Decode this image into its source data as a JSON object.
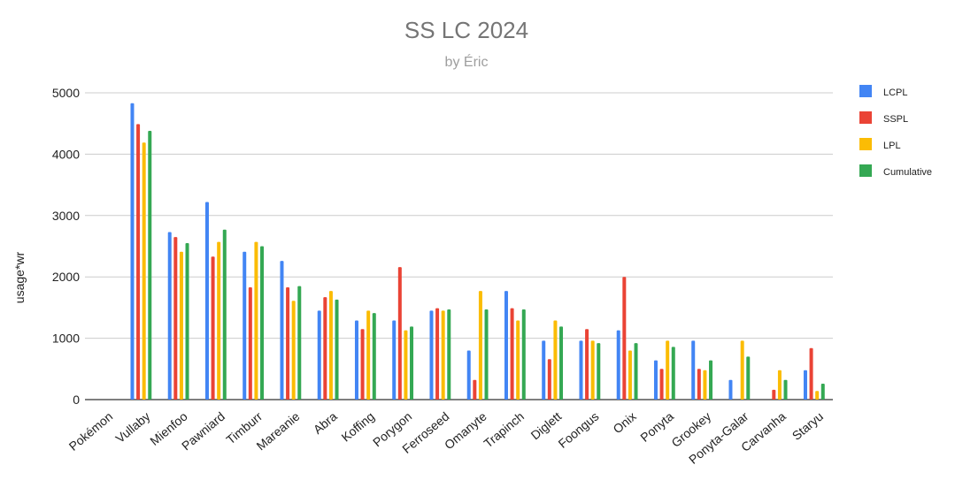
{
  "chart_data": {
    "type": "bar",
    "title": "SS LC 2024",
    "subtitle": "by Éric",
    "xlabel": "",
    "ylabel": "usage*wr",
    "ylim": [
      0,
      5000
    ],
    "yticks": [
      0,
      1000,
      2000,
      3000,
      4000,
      5000
    ],
    "grid": true,
    "legend_position": "right",
    "categories": [
      "Pokémon",
      "Vullaby",
      "Mienfoo",
      "Pawniard",
      "Timburr",
      "Mareanie",
      "Abra",
      "Koffing",
      "Porygon",
      "Ferroseed",
      "Omanyte",
      "Trapinch",
      "Diglett",
      "Foongus",
      "Onix",
      "Ponyta",
      "Grookey",
      "Ponyta-Galar",
      "Carvanha",
      "Staryu"
    ],
    "series": [
      {
        "name": "LCPL",
        "color": "#4285F4",
        "values": [
          null,
          4830,
          2730,
          3220,
          2410,
          2260,
          1450,
          1290,
          1290,
          1450,
          800,
          1770,
          960,
          960,
          1130,
          640,
          960,
          320,
          0,
          480
        ]
      },
      {
        "name": "SSPL",
        "color": "#EA4335",
        "values": [
          null,
          4490,
          2650,
          2330,
          1830,
          1830,
          1670,
          1150,
          2160,
          1490,
          320,
          1490,
          660,
          1150,
          2000,
          500,
          500,
          0,
          160,
          840
        ]
      },
      {
        "name": "LPL",
        "color": "#FBBC04",
        "values": [
          null,
          4190,
          2410,
          2570,
          2570,
          1610,
          1770,
          1450,
          1130,
          1450,
          1770,
          1290,
          1290,
          960,
          800,
          960,
          480,
          960,
          480,
          140
        ]
      },
      {
        "name": "Cumulative",
        "color": "#34A853",
        "values": [
          null,
          4380,
          2550,
          2770,
          2500,
          1850,
          1630,
          1410,
          1190,
          1470,
          1470,
          1470,
          1190,
          920,
          920,
          860,
          640,
          700,
          320,
          260
        ]
      }
    ]
  }
}
